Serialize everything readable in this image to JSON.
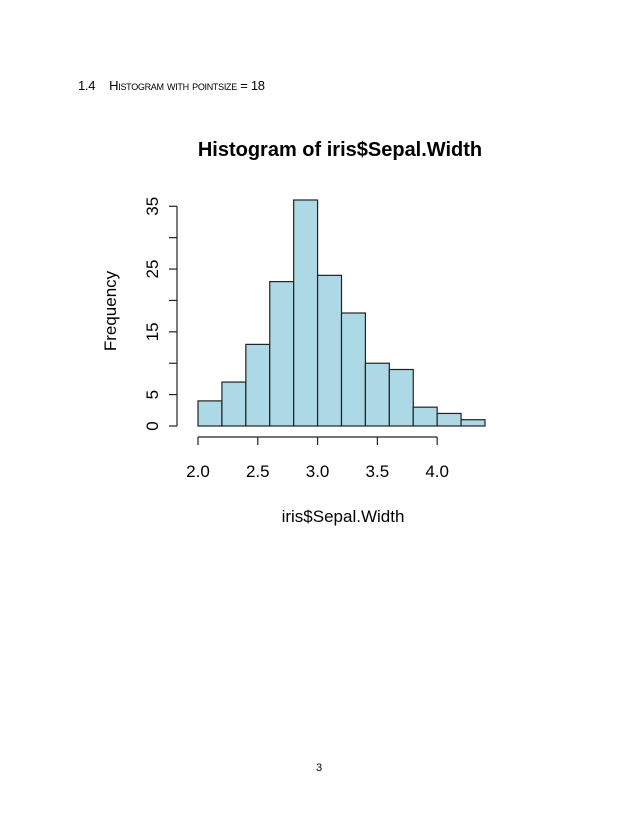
{
  "section": {
    "number": "1.4",
    "title": "Histogram with pointsize = 18"
  },
  "chart_data": {
    "type": "bar",
    "title": "Histogram of iris$Sepal.Width",
    "xlabel": "iris$Sepal.Width",
    "ylabel": "Frequency",
    "bins": [
      {
        "start": 2.0,
        "end": 2.2,
        "count": 4
      },
      {
        "start": 2.2,
        "end": 2.4,
        "count": 7
      },
      {
        "start": 2.4,
        "end": 2.6,
        "count": 13
      },
      {
        "start": 2.6,
        "end": 2.8,
        "count": 23
      },
      {
        "start": 2.8,
        "end": 3.0,
        "count": 36
      },
      {
        "start": 3.0,
        "end": 3.2,
        "count": 24
      },
      {
        "start": 3.2,
        "end": 3.4,
        "count": 18
      },
      {
        "start": 3.4,
        "end": 3.6,
        "count": 10
      },
      {
        "start": 3.6,
        "end": 3.8,
        "count": 9
      },
      {
        "start": 3.8,
        "end": 4.0,
        "count": 3
      },
      {
        "start": 4.0,
        "end": 4.2,
        "count": 2
      },
      {
        "start": 4.2,
        "end": 4.4,
        "count": 1
      }
    ],
    "xlim": [
      2.0,
      4.4
    ],
    "ylim": [
      0,
      36
    ],
    "x_ticks": [
      "2.0",
      "2.5",
      "3.0",
      "3.5",
      "4.0"
    ],
    "y_ticks": [
      "0",
      "5",
      "15",
      "25",
      "35"
    ],
    "bar_color": "#add8e6",
    "grid": false
  },
  "page_number": "3"
}
